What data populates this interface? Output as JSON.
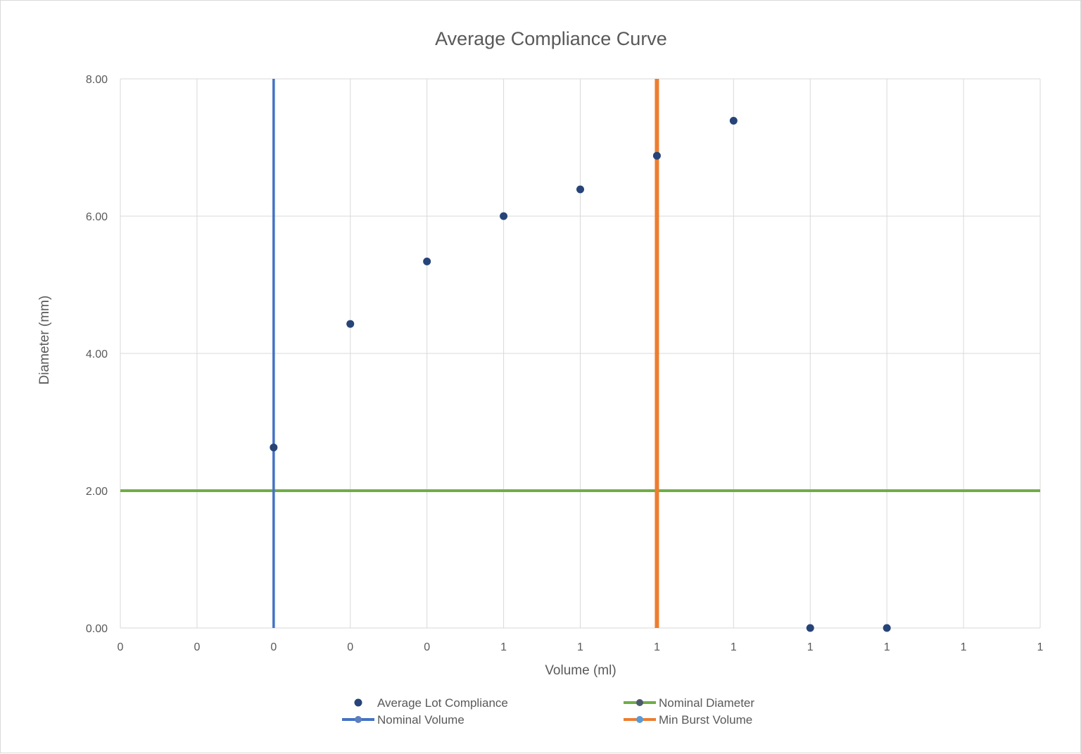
{
  "chart_data": {
    "type": "scatter",
    "title": "Average Compliance Curve",
    "xlabel": "Volume (ml)",
    "ylabel": "Diameter (mm)",
    "xlim": [
      0,
      1.2
    ],
    "ylim": [
      0,
      8
    ],
    "x_ticks": [
      0,
      0.1,
      0.2,
      0.3,
      0.4,
      0.5,
      0.6,
      0.7,
      0.8,
      0.9,
      1.0,
      1.1,
      1.2
    ],
    "x_tick_labels": [
      "0",
      "0",
      "0",
      "0",
      "0",
      "1",
      "1",
      "1",
      "1",
      "1",
      "1",
      "1",
      "1"
    ],
    "y_ticks": [
      0,
      2,
      4,
      6,
      8
    ],
    "y_tick_labels": [
      "0.00",
      "2.00",
      "4.00",
      "6.00",
      "8.00"
    ],
    "grid": true,
    "legend_position": "bottom",
    "series": [
      {
        "name": "Average Lot Compliance",
        "kind": "points",
        "color": "#264478",
        "x": [
          0.2,
          0.3,
          0.4,
          0.5,
          0.6,
          0.7,
          0.8,
          0.9,
          1.0
        ],
        "y": [
          2.63,
          4.43,
          5.34,
          6.0,
          6.39,
          6.88,
          7.39,
          0.0,
          0.0
        ]
      },
      {
        "name": "Nominal Diameter",
        "kind": "hline",
        "color": "#70ad47",
        "marker_color": "#4d5a6b",
        "y": 2.0
      },
      {
        "name": "Nominal Volume",
        "kind": "vline",
        "color": "#4472c4",
        "marker_color": "#5b7fc0",
        "x": 0.2
      },
      {
        "name": "Min Burst Volume",
        "kind": "vline",
        "color": "#ed7d31",
        "marker_color": "#5b9bd5",
        "x": 0.7
      }
    ]
  }
}
